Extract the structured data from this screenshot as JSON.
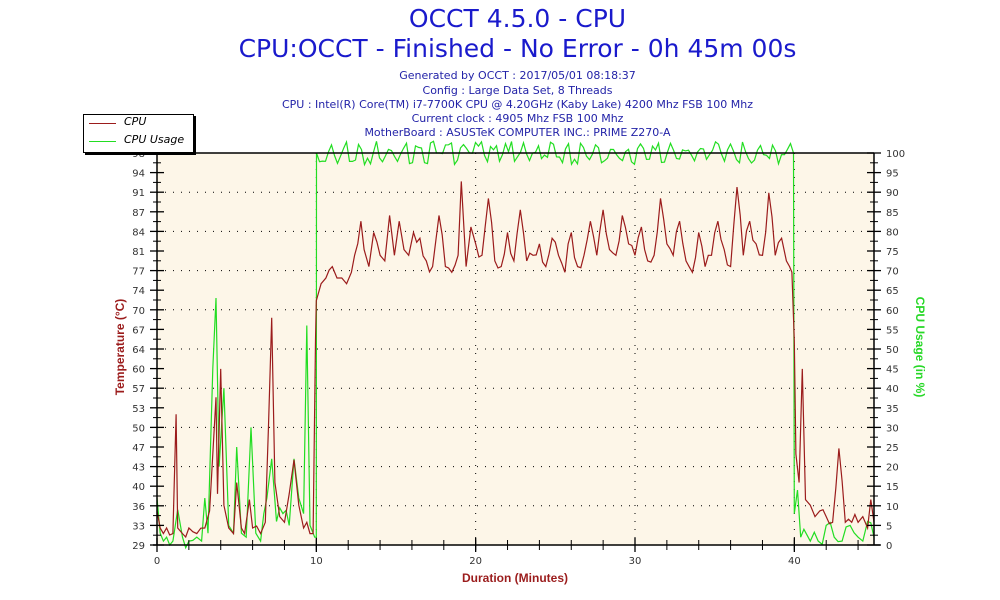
{
  "header": {
    "title": "OCCT 4.5.0 - CPU",
    "subtitle": "CPU:OCCT - Finished - No Error - 0h 45m 00s",
    "info_lines": [
      "Generated by OCCT : 2017/05/01 08:18:37",
      "Config : Large Data Set, 8 Threads",
      "CPU : Intel(R) Core(TM) i7-7700K CPU @ 4.20GHz (Kaby Lake) 4200 Mhz FSB 100 Mhz",
      "Current clock : 4905 Mhz FSB 100 Mhz",
      "MotherBoard : ASUSTeK COMPUTER INC.: PRIME Z270-A"
    ]
  },
  "legend": {
    "items": [
      {
        "label": "CPU",
        "color": "#9b1c1c"
      },
      {
        "label": "CPU Usage",
        "color": "#22dd22"
      }
    ]
  },
  "colors": {
    "plot_bg": "#fdf6e8",
    "temp_line": "#9b1c1c",
    "usage_line": "#22dd22",
    "title": "#1a1acc",
    "axis_left_label": "#9b1c1c",
    "axis_right_label": "#27d827"
  },
  "chart_data": {
    "type": "line",
    "title": "OCCT 4.5.0 - CPU",
    "subtitle": "CPU:OCCT - Finished - No Error - 0h 45m 00s",
    "xlabel": "Duration (Minutes)",
    "ylabel": "Temperature (°C)",
    "ylabel_right": "CPU Usage (in %)",
    "xlim": [
      0,
      45
    ],
    "ylim": [
      29,
      98
    ],
    "ylim_right": [
      0,
      100
    ],
    "x_ticks": [
      0,
      10,
      20,
      30,
      40
    ],
    "y_ticks_left": [
      29,
      33,
      36,
      40,
      43,
      47,
      50,
      53,
      57,
      60,
      64,
      67,
      70,
      74,
      77,
      81,
      84,
      87,
      91,
      94,
      98
    ],
    "y_ticks_right": [
      0,
      5,
      10,
      15,
      20,
      25,
      30,
      35,
      40,
      45,
      50,
      55,
      60,
      65,
      70,
      75,
      80,
      85,
      90,
      95,
      100
    ],
    "grid": "dotted",
    "legend_position": "top-left outside",
    "series": [
      {
        "name": "CPU",
        "axis": "left",
        "unit": "°C",
        "x": [
          0,
          0.2,
          0.4,
          0.6,
          1.0,
          1.2,
          1.3,
          1.6,
          2.0,
          2.5,
          3.0,
          3.3,
          3.5,
          3.7,
          3.8,
          4.0,
          4.2,
          4.5,
          4.8,
          5.0,
          5.3,
          5.5,
          5.8,
          6.0,
          6.5,
          6.8,
          7.0,
          7.2,
          7.4,
          7.7,
          8.0,
          8.3,
          8.6,
          8.9,
          9.2,
          9.4,
          9.6,
          9.8,
          9.95,
          10.0,
          10.1,
          10.3,
          10.6,
          11.0,
          11.3,
          11.6,
          11.9,
          12.2,
          12.4,
          12.8,
          13.0,
          13.3,
          13.6,
          14.0,
          14.3,
          14.6,
          14.9,
          15.2,
          15.5,
          15.8,
          16.1,
          16.5,
          16.9,
          17.3,
          17.7,
          18.1,
          18.5,
          18.9,
          19.1,
          19.4,
          19.7,
          20.0,
          20.4,
          20.8,
          21.2,
          21.6,
          22.0,
          22.4,
          22.8,
          23.2,
          23.6,
          24.0,
          24.4,
          24.8,
          25.2,
          25.6,
          26.0,
          26.4,
          26.8,
          27.2,
          27.6,
          28.0,
          28.4,
          28.8,
          29.2,
          29.6,
          30.0,
          30.4,
          30.8,
          31.2,
          31.6,
          32.0,
          32.4,
          32.8,
          33.2,
          33.6,
          34.0,
          34.4,
          34.8,
          35.2,
          35.6,
          36.0,
          36.4,
          36.8,
          37.2,
          37.6,
          38.0,
          38.4,
          38.8,
          39.2,
          39.5,
          39.7,
          39.85,
          40.0,
          40.1,
          40.3,
          40.5,
          40.7,
          41.0,
          41.3,
          41.6,
          42.0,
          42.4,
          42.8,
          43.2,
          43.6,
          44.0,
          44.3,
          44.6,
          44.8,
          45.0
        ],
        "values": [
          35,
          32,
          31,
          32,
          31,
          52,
          32,
          31,
          32,
          31,
          32,
          35,
          45,
          55,
          38,
          60,
          36,
          32,
          31,
          40,
          32,
          31,
          37,
          32,
          31,
          33,
          50,
          69,
          40,
          34,
          33,
          38,
          44,
          36,
          32,
          33,
          31,
          31,
          65,
          72,
          73,
          75,
          76,
          78,
          76,
          76,
          75,
          77,
          80,
          86,
          81,
          78,
          84,
          80,
          79,
          87,
          80,
          86,
          81,
          80,
          84,
          83,
          79,
          78,
          87,
          78,
          77,
          80,
          93,
          78,
          85,
          82,
          80,
          90,
          79,
          78,
          84,
          79,
          88,
          79,
          80,
          82,
          78,
          83,
          80,
          77,
          84,
          78,
          80,
          86,
          80,
          88,
          81,
          80,
          87,
          82,
          80,
          85,
          79,
          80,
          90,
          82,
          80,
          86,
          79,
          77,
          84,
          78,
          80,
          86,
          81,
          78,
          92,
          80,
          86,
          82,
          80,
          91,
          80,
          83,
          79,
          78,
          77,
          65,
          45,
          40,
          60,
          37,
          36,
          34,
          35,
          34,
          33,
          46,
          33,
          33,
          33,
          34,
          32,
          37,
          33
        ]
      },
      {
        "name": "CPU Usage",
        "axis": "right",
        "unit": "%",
        "x": [
          0,
          0.2,
          0.4,
          0.6,
          1.0,
          1.3,
          1.6,
          2.0,
          2.5,
          2.8,
          3.0,
          3.2,
          3.5,
          3.7,
          3.9,
          4.2,
          4.5,
          4.8,
          5.0,
          5.3,
          5.6,
          5.9,
          6.2,
          6.5,
          6.9,
          7.2,
          7.5,
          7.9,
          8.3,
          8.6,
          8.9,
          9.2,
          9.4,
          9.6,
          9.9,
          10.0,
          10.01,
          39.95,
          40.0,
          40.2,
          40.4,
          40.6,
          41.0,
          41.5,
          42.0,
          42.5,
          43.0,
          43.5,
          44.0,
          44.3,
          44.6,
          45.0
        ],
        "values": [
          12,
          3,
          1,
          2,
          1,
          9,
          2,
          1,
          2,
          1,
          12,
          3,
          45,
          63,
          20,
          40,
          5,
          3,
          25,
          3,
          2,
          30,
          3,
          1,
          12,
          22,
          6,
          8,
          5,
          22,
          12,
          8,
          56,
          5,
          2,
          2,
          100,
          100,
          8,
          14,
          2,
          4,
          1,
          1,
          5,
          2,
          1,
          5,
          2,
          1,
          6,
          2
        ]
      }
    ]
  },
  "axes": {
    "x_title": "Duration (Minutes)",
    "y_left_title": "Temperature (°C)",
    "y_right_title": "CPU Usage (in %)"
  }
}
